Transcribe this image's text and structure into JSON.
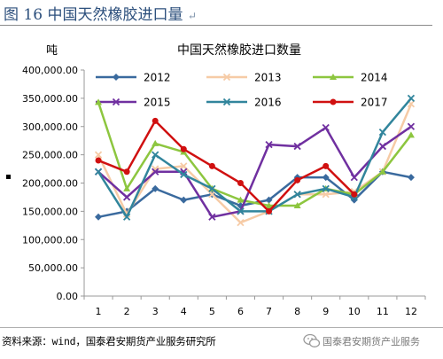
{
  "figure": {
    "title_prefix": "图 16",
    "title_text": "中国天然橡胶进口量",
    "title_mark": "↵",
    "source": "资料来源：wind，国泰君安期货产业服务研究所",
    "watermark": "国泰君安期货产业服务"
  },
  "chart_data": {
    "type": "line",
    "title": "中国天然橡胶进口数量",
    "ylabel": "吨",
    "xlabel": "",
    "categories": [
      "1",
      "2",
      "3",
      "4",
      "5",
      "6",
      "7",
      "8",
      "9",
      "10",
      "11",
      "12"
    ],
    "y_ticks": [
      "0.00",
      "50,000.00",
      "100,000.00",
      "150,000.00",
      "200,000.00",
      "250,000.00",
      "300,000.00",
      "350,000.00",
      "400,000.00"
    ],
    "ylim": [
      0,
      400000
    ],
    "grid": false,
    "legend_position": "top",
    "series": [
      {
        "name": "2012",
        "color": "#3a6a9e",
        "marker": "diamond",
        "values": [
          140000,
          150000,
          190000,
          170000,
          180000,
          160000,
          170000,
          210000,
          210000,
          170000,
          220000,
          210000
        ]
      },
      {
        "name": "2013",
        "color": "#f6cba6",
        "marker": "x",
        "values": [
          250000,
          145000,
          225000,
          230000,
          180000,
          130000,
          150000,
          180000,
          180000,
          185000,
          220000,
          340000
        ]
      },
      {
        "name": "2014",
        "color": "#8dc63f",
        "marker": "triangle",
        "values": [
          343000,
          190000,
          270000,
          255000,
          190000,
          170000,
          160000,
          160000,
          190000,
          180000,
          220000,
          285000
        ]
      },
      {
        "name": "2015",
        "color": "#7030a0",
        "marker": "x",
        "values": [
          220000,
          175000,
          220000,
          220000,
          140000,
          150000,
          268000,
          265000,
          298000,
          210000,
          265000,
          300000
        ]
      },
      {
        "name": "2016",
        "color": "#31859c",
        "marker": "x",
        "values": [
          220000,
          140000,
          250000,
          215000,
          190000,
          150000,
          150000,
          180000,
          190000,
          175000,
          290000,
          350000
        ]
      },
      {
        "name": "2017",
        "color": "#d01010",
        "marker": "circle",
        "values": [
          240000,
          220000,
          310000,
          260000,
          230000,
          200000,
          150000,
          205000,
          230000,
          180000,
          null,
          null
        ]
      }
    ]
  }
}
